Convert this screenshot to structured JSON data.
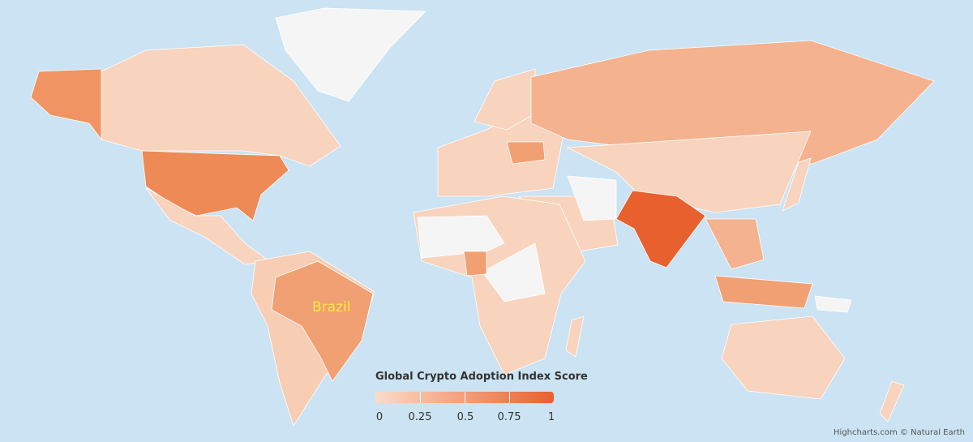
{
  "map": {
    "legend_title": "Global Crypto Adoption Index Score",
    "legend_ticks": [
      "0",
      "0.25",
      "0.5",
      "0.75",
      "1"
    ],
    "color_min": "#fbdcc8",
    "color_max": "#e8602e",
    "no_data_color": "#f5f5f5",
    "ocean_color": "#cbe3f2",
    "highlight_label": "Brazil",
    "highlight_label_color": "#f7ea3a",
    "credits": "Highcharts.com © Natural Earth"
  }
}
